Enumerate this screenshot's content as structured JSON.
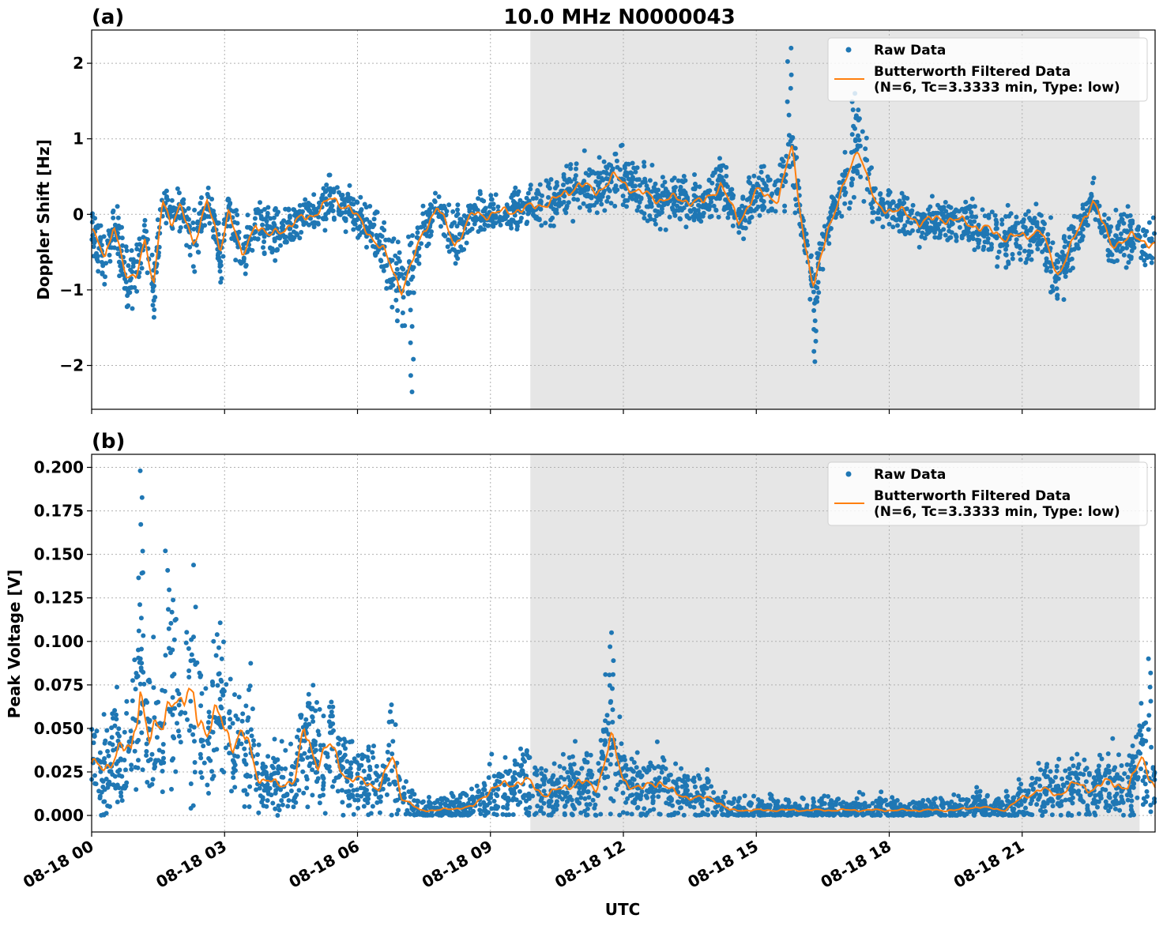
{
  "figure": {
    "title": "10.0 MHz N0000043",
    "xlabel": "UTC"
  },
  "chart_data": [
    {
      "type": "scatter",
      "panel_label": "(a)",
      "title": "10.0 MHz N0000043",
      "ylabel": "Doppler Shift [Hz]",
      "xlabel": "",
      "xlim_hours": [
        0,
        24
      ],
      "ylim": [
        -2.58,
        2.44
      ],
      "yticks": [
        2,
        1,
        0,
        -1,
        -2
      ],
      "ytick_labels": [
        "2",
        "1",
        "0",
        "−1",
        "−2"
      ],
      "grid": true,
      "shaded_region_hours": [
        9.9,
        23.65
      ],
      "legend_position": "top-right",
      "legend": [
        "Raw Data",
        "Butterworth Filtered Data",
        "(N=6, Tc=3.3333 min, Type: low)"
      ],
      "series": [
        {
          "name": "Raw Data",
          "color": "#1f77b4",
          "x_hours": [
            0,
            0.3,
            0.5,
            0.8,
            1.0,
            1.2,
            1.4,
            1.6,
            1.8,
            2.0,
            2.3,
            2.6,
            2.9,
            3.1,
            3.4,
            3.7,
            4.0,
            4.3,
            4.6,
            5.0,
            5.4,
            5.8,
            6.2,
            6.6,
            7.0,
            7.2,
            7.5,
            7.8,
            8.2,
            8.6,
            9.0,
            9.5,
            10.0,
            10.5,
            11.0,
            11.4,
            11.8,
            12.3,
            12.8,
            13.3,
            13.8,
            14.2,
            14.6,
            15.0,
            15.5,
            15.8,
            16.1,
            16.3,
            16.6,
            17.0,
            17.3,
            17.7,
            18.2,
            18.7,
            19.2,
            19.7,
            20.2,
            20.6,
            21.0,
            21.4,
            21.8,
            22.2,
            22.6,
            23.0,
            23.5,
            24.0
          ],
          "y": [
            -0.2,
            -0.6,
            -0.1,
            -0.9,
            -0.8,
            -0.3,
            -1.0,
            0.2,
            -0.1,
            0.1,
            -0.4,
            0.2,
            -0.5,
            0.1,
            -0.6,
            -0.1,
            -0.3,
            -0.2,
            -0.1,
            0.0,
            0.2,
            0.1,
            -0.2,
            -0.5,
            -1.0,
            -0.7,
            -0.2,
            0.1,
            -0.4,
            0.0,
            0.0,
            0.05,
            0.1,
            0.2,
            0.4,
            0.3,
            0.5,
            0.3,
            0.2,
            0.2,
            0.15,
            0.4,
            -0.1,
            0.3,
            0.2,
            0.9,
            -0.4,
            -1.0,
            -0.2,
            0.4,
            0.9,
            0.1,
            0.05,
            -0.1,
            -0.05,
            -0.1,
            -0.2,
            -0.3,
            -0.3,
            -0.2,
            -0.8,
            -0.3,
            0.2,
            -0.4,
            -0.3,
            -0.4
          ],
          "extremes": [
            {
              "x_hours": 7.25,
              "y": -2.35
            },
            {
              "x_hours": 15.75,
              "y": 2.2
            },
            {
              "x_hours": 16.35,
              "y": -1.95
            },
            {
              "x_hours": 17.2,
              "y": 1.6
            }
          ]
        },
        {
          "name": "Butterworth Filtered Data (N=6, Tc=3.3333 min, Type: low)",
          "color": "#ff7f0e",
          "x_hours": [
            0,
            0.3,
            0.5,
            0.8,
            1.0,
            1.2,
            1.4,
            1.6,
            1.8,
            2.0,
            2.3,
            2.6,
            2.9,
            3.1,
            3.4,
            3.7,
            4.0,
            4.3,
            4.6,
            5.0,
            5.4,
            5.8,
            6.2,
            6.6,
            7.0,
            7.2,
            7.5,
            7.8,
            8.2,
            8.6,
            9.0,
            9.5,
            10.0,
            10.5,
            11.0,
            11.4,
            11.8,
            12.3,
            12.8,
            13.3,
            13.8,
            14.2,
            14.6,
            15.0,
            15.5,
            15.8,
            16.1,
            16.3,
            16.6,
            17.0,
            17.3,
            17.7,
            18.2,
            18.7,
            19.2,
            19.7,
            20.2,
            20.6,
            21.0,
            21.4,
            21.8,
            22.2,
            22.6,
            23.0,
            23.5,
            24.0
          ],
          "y": [
            -0.2,
            -0.6,
            -0.1,
            -0.9,
            -0.8,
            -0.3,
            -1.0,
            0.2,
            -0.1,
            0.1,
            -0.4,
            0.2,
            -0.5,
            0.1,
            -0.6,
            -0.1,
            -0.3,
            -0.2,
            -0.1,
            0.0,
            0.2,
            0.1,
            -0.2,
            -0.5,
            -1.0,
            -0.7,
            -0.2,
            0.1,
            -0.4,
            0.0,
            0.0,
            0.05,
            0.1,
            0.2,
            0.4,
            0.3,
            0.5,
            0.3,
            0.2,
            0.2,
            0.15,
            0.4,
            -0.1,
            0.3,
            0.2,
            0.9,
            -0.4,
            -1.0,
            -0.2,
            0.4,
            0.9,
            0.1,
            0.05,
            -0.1,
            -0.05,
            -0.1,
            -0.2,
            -0.3,
            -0.3,
            -0.2,
            -0.8,
            -0.3,
            0.2,
            -0.4,
            -0.3,
            -0.4
          ]
        }
      ]
    },
    {
      "type": "scatter",
      "panel_label": "(b)",
      "title": "",
      "ylabel": "Peak Voltage [V]",
      "xlabel": "UTC",
      "xlim_hours": [
        0,
        24
      ],
      "ylim": [
        -0.0095,
        0.2075
      ],
      "yticks": [
        0.2,
        0.175,
        0.15,
        0.125,
        0.1,
        0.075,
        0.05,
        0.025,
        0.0
      ],
      "ytick_labels": [
        "0.200",
        "0.175",
        "0.150",
        "0.125",
        "0.100",
        "0.075",
        "0.050",
        "0.025",
        "0.000"
      ],
      "xticks_hours": [
        0,
        3,
        6,
        9,
        12,
        15,
        18,
        21
      ],
      "xtick_labels": [
        "08-18 00",
        "08-18 03",
        "08-18 06",
        "08-18 09",
        "08-18 12",
        "08-18 15",
        "08-18 18",
        "08-18 21"
      ],
      "grid": true,
      "shaded_region_hours": [
        9.9,
        23.65
      ],
      "legend_position": "top-right",
      "legend": [
        "Raw Data",
        "Butterworth Filtered Data",
        "(N=6, Tc=3.3333 min, Type: low)"
      ],
      "series": [
        {
          "name": "Raw Data",
          "color": "#1f77b4",
          "x_hours": [
            0,
            0.3,
            0.6,
            0.9,
            1.1,
            1.3,
            1.6,
            1.8,
            2.0,
            2.3,
            2.6,
            2.9,
            3.2,
            3.5,
            3.8,
            4.2,
            4.6,
            4.8,
            5.1,
            5.4,
            5.8,
            6.2,
            6.5,
            6.8,
            7.0,
            7.4,
            7.8,
            8.2,
            8.6,
            9.0,
            9.4,
            9.8,
            10.2,
            10.6,
            11.0,
            11.4,
            11.7,
            12.0,
            12.4,
            12.8,
            13.2,
            13.6,
            14.0,
            14.4,
            14.8,
            15.2,
            15.6,
            16.0,
            16.5,
            17.0,
            17.5,
            18.0,
            18.5,
            19.0,
            19.5,
            20.0,
            20.3,
            20.6,
            21.0,
            21.4,
            21.8,
            22.2,
            22.6,
            23.0,
            23.4,
            23.7,
            24.0
          ],
          "y": [
            0.03,
            0.025,
            0.04,
            0.035,
            0.075,
            0.045,
            0.05,
            0.075,
            0.06,
            0.07,
            0.045,
            0.06,
            0.04,
            0.045,
            0.02,
            0.018,
            0.02,
            0.05,
            0.03,
            0.04,
            0.02,
            0.02,
            0.015,
            0.035,
            0.01,
            0.003,
            0.003,
            0.004,
            0.005,
            0.015,
            0.018,
            0.02,
            0.012,
            0.015,
            0.02,
            0.015,
            0.045,
            0.02,
            0.015,
            0.02,
            0.012,
            0.01,
            0.01,
            0.003,
            0.003,
            0.003,
            0.003,
            0.003,
            0.003,
            0.003,
            0.003,
            0.003,
            0.003,
            0.003,
            0.003,
            0.005,
            0.004,
            0.003,
            0.01,
            0.015,
            0.012,
            0.018,
            0.015,
            0.02,
            0.015,
            0.035,
            0.015
          ],
          "extremes": [
            {
              "x_hours": 1.1,
              "y": 0.198
            },
            {
              "x_hours": 1.7,
              "y": 0.152
            },
            {
              "x_hours": 11.75,
              "y": 0.105
            },
            {
              "x_hours": 23.85,
              "y": 0.09
            }
          ]
        },
        {
          "name": "Butterworth Filtered Data (N=6, Tc=3.3333 min, Type: low)",
          "color": "#ff7f0e",
          "x_hours": [
            0,
            0.3,
            0.6,
            0.9,
            1.1,
            1.3,
            1.6,
            1.8,
            2.0,
            2.3,
            2.6,
            2.9,
            3.2,
            3.5,
            3.8,
            4.2,
            4.6,
            4.8,
            5.1,
            5.4,
            5.8,
            6.2,
            6.5,
            6.8,
            7.0,
            7.4,
            7.8,
            8.2,
            8.6,
            9.0,
            9.4,
            9.8,
            10.2,
            10.6,
            11.0,
            11.4,
            11.7,
            12.0,
            12.4,
            12.8,
            13.2,
            13.6,
            14.0,
            14.4,
            14.8,
            15.2,
            15.6,
            16.0,
            16.5,
            17.0,
            17.5,
            18.0,
            18.5,
            19.0,
            19.5,
            20.0,
            20.3,
            20.6,
            21.0,
            21.4,
            21.8,
            22.2,
            22.6,
            23.0,
            23.4,
            23.7,
            24.0
          ],
          "y": [
            0.03,
            0.025,
            0.04,
            0.035,
            0.075,
            0.045,
            0.05,
            0.075,
            0.06,
            0.07,
            0.045,
            0.06,
            0.04,
            0.045,
            0.02,
            0.018,
            0.02,
            0.05,
            0.03,
            0.04,
            0.02,
            0.02,
            0.015,
            0.035,
            0.01,
            0.003,
            0.003,
            0.004,
            0.005,
            0.015,
            0.018,
            0.02,
            0.012,
            0.015,
            0.02,
            0.015,
            0.045,
            0.02,
            0.015,
            0.02,
            0.012,
            0.01,
            0.01,
            0.003,
            0.003,
            0.003,
            0.003,
            0.003,
            0.003,
            0.003,
            0.003,
            0.003,
            0.003,
            0.003,
            0.003,
            0.005,
            0.004,
            0.003,
            0.01,
            0.015,
            0.012,
            0.018,
            0.015,
            0.02,
            0.015,
            0.035,
            0.015
          ]
        }
      ]
    }
  ]
}
